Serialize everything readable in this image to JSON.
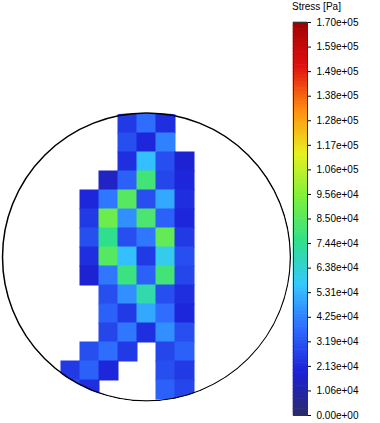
{
  "chart_data": {
    "type": "heatmap",
    "tick_labels": false,
    "cells": [
      [
        null,
        null,
        null,
        25000,
        38000,
        22000,
        null,
        null,
        null
      ],
      [
        null,
        null,
        null,
        30000,
        20000,
        42000,
        null,
        null,
        null
      ],
      [
        null,
        null,
        null,
        22000,
        55000,
        30000,
        18000,
        null,
        null
      ],
      [
        null,
        null,
        15000,
        35000,
        80000,
        28000,
        20000,
        null,
        null
      ],
      [
        null,
        20000,
        40000,
        85000,
        30000,
        50000,
        22000,
        null,
        null
      ],
      [
        null,
        25000,
        90000,
        45000,
        82000,
        35000,
        20000,
        null,
        null
      ],
      [
        null,
        30000,
        75000,
        30000,
        40000,
        88000,
        25000,
        null,
        null
      ],
      [
        null,
        22000,
        85000,
        55000,
        25000,
        60000,
        30000,
        null,
        null
      ],
      [
        null,
        18000,
        40000,
        78000,
        35000,
        80000,
        28000,
        null,
        null
      ],
      [
        null,
        null,
        30000,
        45000,
        70000,
        30000,
        22000,
        null,
        null
      ],
      [
        null,
        null,
        35000,
        25000,
        50000,
        38000,
        20000,
        null,
        null
      ],
      [
        null,
        null,
        28000,
        40000,
        22000,
        45000,
        30000,
        null,
        null
      ],
      [
        null,
        30000,
        38000,
        25000,
        null,
        28000,
        35000,
        null,
        null
      ],
      [
        25000,
        35000,
        20000,
        null,
        null,
        30000,
        25000,
        null,
        null
      ],
      [
        30000,
        22000,
        null,
        null,
        null,
        35000,
        28000,
        null,
        null
      ]
    ],
    "colorbar": {
      "label": "Stress [Pa]",
      "range": [
        0,
        170000
      ],
      "ticks": [
        {
          "value": 0,
          "label": "0.00e+00"
        },
        {
          "value": 10625,
          "label": "1.06e+04"
        },
        {
          "value": 21250,
          "label": "2.13e+04"
        },
        {
          "value": 31875,
          "label": "3.19e+04"
        },
        {
          "value": 42500,
          "label": "4.25e+04"
        },
        {
          "value": 53125,
          "label": "5.31e+04"
        },
        {
          "value": 63750,
          "label": "6.38e+04"
        },
        {
          "value": 74375,
          "label": "7.44e+04"
        },
        {
          "value": 85000,
          "label": "8.50e+04"
        },
        {
          "value": 95625,
          "label": "9.56e+04"
        },
        {
          "value": 106250,
          "label": "1.06e+05"
        },
        {
          "value": 116875,
          "label": "1.17e+05"
        },
        {
          "value": 127500,
          "label": "1.28e+05"
        },
        {
          "value": 138125,
          "label": "1.38e+05"
        },
        {
          "value": 148750,
          "label": "1.49e+05"
        },
        {
          "value": 159375,
          "label": "1.59e+05"
        },
        {
          "value": 170000,
          "label": "1.70e+05"
        }
      ]
    }
  }
}
